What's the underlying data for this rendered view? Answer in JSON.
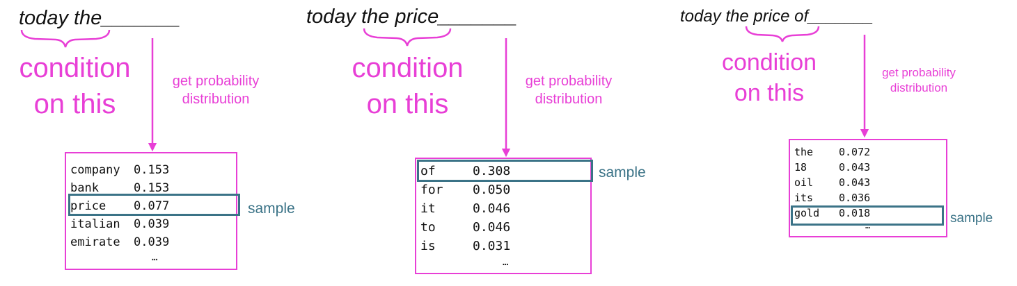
{
  "panels": [
    {
      "prompt": "today the",
      "blank": "_______",
      "condition_lines": [
        "condition",
        "on this"
      ],
      "arrow_label_lines": [
        "get probability",
        "distribution"
      ],
      "rows": [
        {
          "word": "company",
          "prob": "0.153"
        },
        {
          "word": "bank",
          "prob": "0.153"
        },
        {
          "word": "price",
          "prob": "0.077"
        },
        {
          "word": "italian",
          "prob": "0.039"
        },
        {
          "word": "emirate",
          "prob": "0.039"
        }
      ],
      "ellipsis": "…",
      "sampled_index": 2,
      "sample_label": "sample"
    },
    {
      "prompt": "today the price",
      "blank": "_______",
      "condition_lines": [
        "condition",
        "on this"
      ],
      "arrow_label_lines": [
        "get probability",
        "distribution"
      ],
      "rows": [
        {
          "word": "of",
          "prob": "0.308"
        },
        {
          "word": "for",
          "prob": "0.050"
        },
        {
          "word": "it",
          "prob": "0.046"
        },
        {
          "word": "to",
          "prob": "0.046"
        },
        {
          "word": "is",
          "prob": "0.031"
        }
      ],
      "ellipsis": "…",
      "sampled_index": 0,
      "sample_label": "sample"
    },
    {
      "prompt": "today the price of",
      "blank": "_______",
      "condition_lines": [
        "condition",
        "on this"
      ],
      "arrow_label_lines": [
        "get probability",
        "distribution"
      ],
      "rows": [
        {
          "word": "the",
          "prob": "0.072"
        },
        {
          "word": "18",
          "prob": "0.043"
        },
        {
          "word": "oil",
          "prob": "0.043"
        },
        {
          "word": "its",
          "prob": "0.036"
        },
        {
          "word": "gold",
          "prob": "0.018"
        }
      ],
      "ellipsis": "…",
      "sampled_index": 4,
      "sample_label": "sample"
    }
  ]
}
